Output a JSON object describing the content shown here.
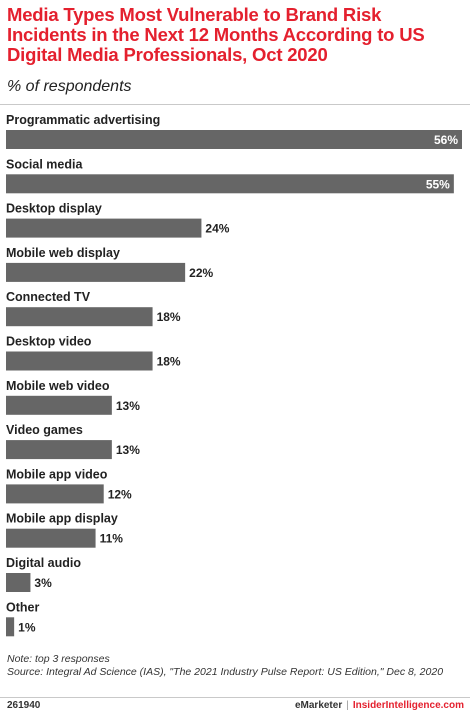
{
  "chart_data": {
    "type": "bar",
    "orientation": "horizontal",
    "title": "Media Types Most Vulnerable to Brand Risk Incidents in the Next 12 Months According to US Digital Media Professionals, Oct 2020",
    "subtitle": "% of respondents",
    "categories": [
      "Programmatic advertising",
      "Social media",
      "Desktop display",
      "Mobile web display",
      "Connected TV",
      "Desktop video",
      "Mobile web video",
      "Video games",
      "Mobile app video",
      "Mobile app display",
      "Digital audio",
      "Other"
    ],
    "values": [
      56,
      55,
      24,
      22,
      18,
      18,
      13,
      13,
      12,
      11,
      3,
      1
    ],
    "value_labels": [
      "56%",
      "55%",
      "24%",
      "22%",
      "18%",
      "18%",
      "13%",
      "13%",
      "12%",
      "11%",
      "3%",
      "1%"
    ],
    "xlim": [
      0,
      56
    ],
    "bar_color": "#666666",
    "inside_label_color": "#ffffff",
    "outside_label_color": "#222222",
    "grid": false
  },
  "notes": {
    "note": "Note: top 3 responses",
    "source": "Source: Integral Ad Science (IAS), \"The 2021 Industry Pulse Report: US Edition,\" Dec 8, 2020"
  },
  "footer": {
    "chart_id": "261940",
    "brand_left": "eMarketer",
    "separator": "|",
    "brand_right": "InsiderIntelligence.com"
  },
  "colors": {
    "title": "#e4202e",
    "rule": "#c9c9c9"
  }
}
